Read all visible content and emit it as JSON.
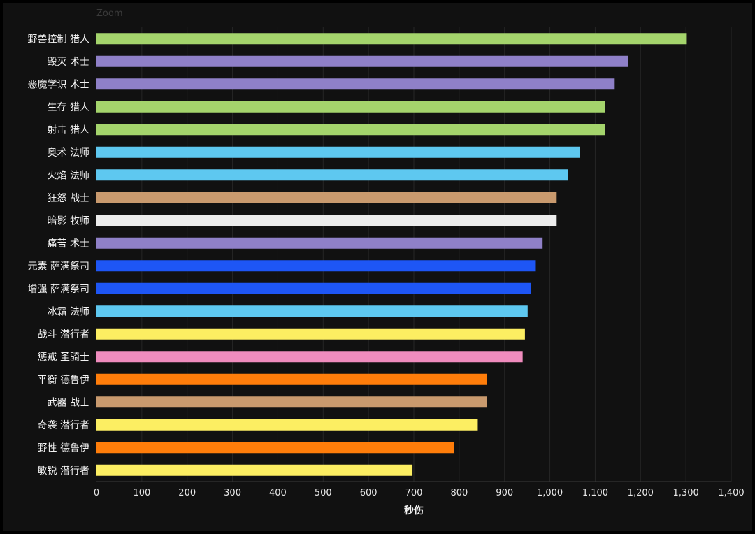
{
  "chart_data": {
    "type": "bar",
    "orientation": "horizontal",
    "zoom_label": "Zoom",
    "title": "",
    "xlabel": "秒伤",
    "ylabel": "",
    "xlim": [
      0,
      1400
    ],
    "xticks": [
      0,
      100,
      200,
      300,
      400,
      500,
      600,
      700,
      800,
      900,
      1000,
      1100,
      1200,
      1300,
      1400
    ],
    "xtick_labels": [
      "0",
      "100",
      "200",
      "300",
      "400",
      "500",
      "600",
      "700",
      "800",
      "900",
      "1,000",
      "1,100",
      "1,200",
      "1,300",
      "1,400"
    ],
    "grid": true,
    "bars": [
      {
        "label": "野兽控制 猎人",
        "value": 1302,
        "color": "#a4d46c"
      },
      {
        "label": "毁灭 术士",
        "value": 1173,
        "color": "#8f80c8"
      },
      {
        "label": "恶魔学识 术士",
        "value": 1143,
        "color": "#8f80c8"
      },
      {
        "label": "生存 猎人",
        "value": 1122,
        "color": "#a4d46c"
      },
      {
        "label": "射击 猎人",
        "value": 1122,
        "color": "#a4d46c"
      },
      {
        "label": "奥术 法师",
        "value": 1066,
        "color": "#5ec8f0"
      },
      {
        "label": "火焰 法师",
        "value": 1040,
        "color": "#5ec8f0"
      },
      {
        "label": "狂怒 战士",
        "value": 1015,
        "color": "#c99a6e"
      },
      {
        "label": "暗影 牧师",
        "value": 1015,
        "color": "#ececec"
      },
      {
        "label": "痛苦 术士",
        "value": 984,
        "color": "#8f80c8"
      },
      {
        "label": "元素 萨满祭司",
        "value": 969,
        "color": "#1e56f5"
      },
      {
        "label": "增强 萨满祭司",
        "value": 959,
        "color": "#1e56f5"
      },
      {
        "label": "冰霜 法师",
        "value": 951,
        "color": "#5ec8f0"
      },
      {
        "label": "战斗 潜行者",
        "value": 945,
        "color": "#fcee62"
      },
      {
        "label": "惩戒 圣骑士",
        "value": 940,
        "color": "#f08cbe"
      },
      {
        "label": "平衡 德鲁伊",
        "value": 861,
        "color": "#ff7d0a"
      },
      {
        "label": "武器 战士",
        "value": 861,
        "color": "#c99a6e"
      },
      {
        "label": "奇袭 潜行者",
        "value": 841,
        "color": "#fcee62"
      },
      {
        "label": "野性 德鲁伊",
        "value": 789,
        "color": "#ff7d0a"
      },
      {
        "label": "敏锐 潜行者",
        "value": 697,
        "color": "#fcee62"
      }
    ]
  }
}
